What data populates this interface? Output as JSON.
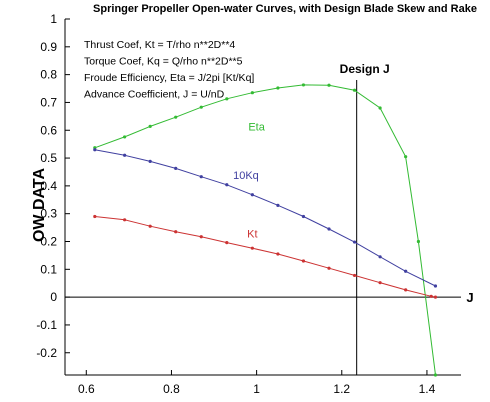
{
  "chart_data": {
    "type": "line",
    "title": "Springer Propeller Open-water Curves, with Design Blade Skew and Rake",
    "xlabel": "J",
    "ylabel": "OW DATA",
    "xlim": [
      0.55,
      1.48
    ],
    "ylim": [
      -0.28,
      1.0
    ],
    "x_ticks": [
      "0.6",
      "0.8",
      "1",
      "1.2",
      "1.4"
    ],
    "y_ticks": [
      "-0.2",
      "-0.1",
      "0",
      "0.1",
      "0.2",
      "0.3",
      "0.4",
      "0.5",
      "0.6",
      "0.7",
      "0.8",
      "0.9",
      "1"
    ],
    "grid": false,
    "annotations": [
      "Thrust Coef, Kt = T/rho n**2D**4",
      "Torque Coef, Kq = Q/rho n**2D**5",
      "Froude Efficiency, Eta = J/2pi [Kt/Kq]",
      "Advance Coefficient, J = U/nD"
    ],
    "design_line": {
      "label": "Design J",
      "x": 1.235
    },
    "zero_line": true,
    "series": [
      {
        "name": "Eta",
        "color": "#33bb33",
        "x": [
          0.62,
          0.69,
          0.75,
          0.81,
          0.87,
          0.93,
          0.99,
          1.05,
          1.11,
          1.17,
          1.23,
          1.29,
          1.35,
          1.38,
          1.42
        ],
        "y": [
          0.537,
          0.576,
          0.614,
          0.647,
          0.683,
          0.713,
          0.735,
          0.752,
          0.763,
          0.762,
          0.744,
          0.68,
          0.505,
          0.2,
          -0.28
        ]
      },
      {
        "name": "10Kq",
        "color": "#4040a0",
        "x": [
          0.62,
          0.69,
          0.75,
          0.81,
          0.87,
          0.93,
          0.99,
          1.05,
          1.11,
          1.17,
          1.23,
          1.29,
          1.35,
          1.42
        ],
        "y": [
          0.53,
          0.51,
          0.488,
          0.463,
          0.433,
          0.404,
          0.368,
          0.33,
          0.29,
          0.245,
          0.198,
          0.145,
          0.093,
          0.04
        ]
      },
      {
        "name": "Kt",
        "color": "#cc3333",
        "x": [
          0.62,
          0.69,
          0.75,
          0.81,
          0.87,
          0.93,
          0.99,
          1.05,
          1.11,
          1.17,
          1.23,
          1.29,
          1.35,
          1.41,
          1.42
        ],
        "y": [
          0.29,
          0.278,
          0.255,
          0.235,
          0.217,
          0.196,
          0.176,
          0.155,
          0.13,
          0.104,
          0.078,
          0.052,
          0.026,
          0.003,
          0.0
        ]
      }
    ],
    "series_label_positions": {
      "Eta": {
        "x": 1.0,
        "y": 0.6
      },
      "10Kq": {
        "x": 0.975,
        "y": 0.425
      },
      "Kt": {
        "x": 0.99,
        "y": 0.215
      }
    }
  }
}
